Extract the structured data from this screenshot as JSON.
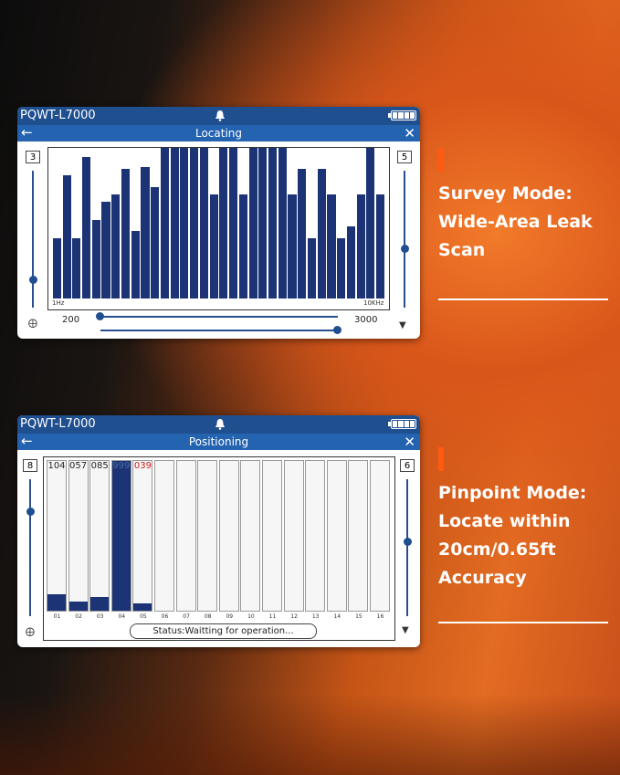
{
  "locating_panel": {
    "device": "PQWT-L7000",
    "title": "Locating",
    "left_slider_value": "3",
    "right_slider_value": "5",
    "freq_min_label": "1Hz",
    "freq_max_label": "10KHz",
    "range_low": "200",
    "range_high": "3000",
    "spectrum": {
      "type": "bar",
      "levels": [
        0.4,
        0.82,
        0.4,
        0.94,
        0.52,
        0.64,
        0.69,
        0.86,
        0.45,
        0.87,
        0.74,
        1.0,
        1.0,
        1.0,
        1.0,
        1.0,
        0.69,
        1.0,
        1.0,
        0.69,
        1.0,
        1.0,
        1.0,
        1.0,
        0.69,
        0.86,
        0.4,
        0.86,
        0.69,
        0.4,
        0.48,
        0.69,
        1.0,
        0.69
      ]
    }
  },
  "positioning_panel": {
    "device": "PQWT-L7000",
    "title": "Positioning",
    "left_slider_value": "8",
    "right_slider_value": "6",
    "status": "Status:Waitting for operation...",
    "channels": [
      {
        "label": "01",
        "value": "104",
        "level": 0.11
      },
      {
        "label": "02",
        "value": "057",
        "level": 0.06
      },
      {
        "label": "03",
        "value": "085",
        "level": 0.09
      },
      {
        "label": "04",
        "value": "999",
        "level": 1.0
      },
      {
        "label": "05",
        "value": "039",
        "level": 0.05
      },
      {
        "label": "06",
        "value": "",
        "level": 0
      },
      {
        "label": "07",
        "value": "",
        "level": 0
      },
      {
        "label": "08",
        "value": "",
        "level": 0
      },
      {
        "label": "09",
        "value": "",
        "level": 0
      },
      {
        "label": "10",
        "value": "",
        "level": 0
      },
      {
        "label": "11",
        "value": "",
        "level": 0
      },
      {
        "label": "12",
        "value": "",
        "level": 0
      },
      {
        "label": "13",
        "value": "",
        "level": 0
      },
      {
        "label": "14",
        "value": "",
        "level": 0
      },
      {
        "label": "15",
        "value": "",
        "level": 0
      },
      {
        "label": "16",
        "value": "",
        "level": 0
      }
    ]
  },
  "callouts": {
    "survey": [
      "Survey Mode:",
      "Wide-Area Leak",
      "Scan"
    ],
    "pinpoint": [
      "Pinpoint Mode:",
      "Locate within",
      "20cm/0.65ft",
      "Accuracy"
    ]
  },
  "colors": {
    "accent": "#ff5a10",
    "bar": "#1c3475",
    "header": "#1f4f8f",
    "titlebar": "#2463b0",
    "highlight_value": "#cc1b1b"
  }
}
